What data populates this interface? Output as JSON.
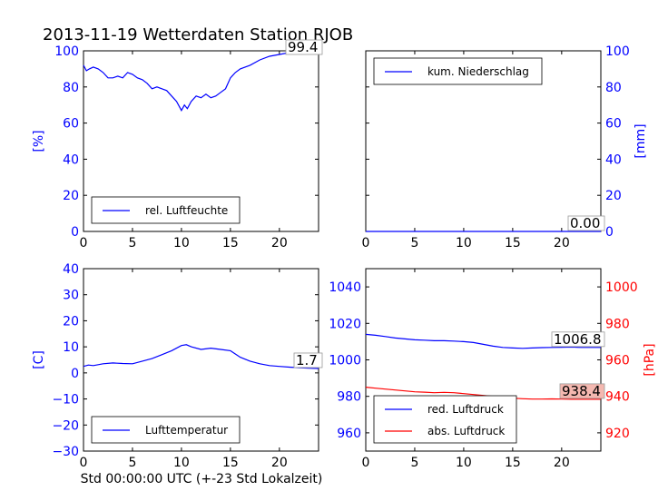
{
  "figure": {
    "title": "2013-11-19 Wetterdaten Station RJOB",
    "xlabel": "Std 00:00:00 UTC (+-23 Std Lokalzeit)"
  },
  "colors": {
    "blue": "#0000ff",
    "red": "#ff0000",
    "black": "#000000",
    "label_bg": "#ffffff",
    "label_bg_red": "#f4b8b0"
  },
  "chart_data": [
    {
      "type": "line",
      "panel": "top-left",
      "xlim": [
        0,
        24
      ],
      "xticks": [
        "0",
        "5",
        "10",
        "15",
        "20"
      ],
      "ylabel": "[%]",
      "ylim": [
        0,
        100
      ],
      "yticks": [
        "0",
        "20",
        "40",
        "60",
        "80",
        "100"
      ],
      "ytick_color": "blue",
      "legend": "bottom-left",
      "last_value_label": "99.4",
      "series": [
        {
          "name": "rel. Luftfeuchte",
          "color": "blue",
          "x": [
            0,
            0.3,
            0.6,
            1,
            1.5,
            2,
            2.5,
            3,
            3.5,
            4,
            4.5,
            5,
            5.5,
            6,
            6.5,
            7,
            7.5,
            8,
            8.5,
            9,
            9.5,
            10,
            10.3,
            10.6,
            11,
            11.5,
            12,
            12.5,
            13,
            13.5,
            14,
            14.5,
            15,
            15.5,
            16,
            17,
            18,
            19,
            20,
            21,
            22,
            23,
            24
          ],
          "y": [
            92,
            89,
            90,
            91,
            90,
            88,
            85,
            85,
            86,
            85,
            88,
            87,
            85,
            84,
            82,
            79,
            80,
            79,
            78,
            75,
            72,
            67,
            70,
            68,
            72,
            75,
            74,
            76,
            74,
            75,
            77,
            79,
            85,
            88,
            90,
            92,
            95,
            97,
            98,
            99,
            99.2,
            99.4,
            99.4
          ]
        }
      ]
    },
    {
      "type": "line",
      "panel": "top-right",
      "xlim": [
        0,
        24
      ],
      "xticks": [
        "0",
        "5",
        "10",
        "15",
        "20"
      ],
      "ylabel": "[mm]",
      "ylim": [
        0,
        100
      ],
      "yticks": [
        "0",
        "20",
        "40",
        "60",
        "80",
        "100"
      ],
      "ytick_color": "blue",
      "legend": "top-left",
      "last_value_label": "0.00",
      "series": [
        {
          "name": "kum. Niederschlag",
          "color": "blue",
          "x": [
            0,
            24
          ],
          "y": [
            0,
            0
          ]
        }
      ]
    },
    {
      "type": "line",
      "panel": "bottom-left",
      "xlim": [
        0,
        24
      ],
      "xticks": [
        "0",
        "5",
        "10",
        "15",
        "20"
      ],
      "ylabel": "[C]",
      "ylim": [
        -30,
        40
      ],
      "yticks": [
        "−30",
        "−20",
        "−10",
        "0",
        "10",
        "20",
        "30",
        "40"
      ],
      "ytick_color": "blue",
      "legend": "bottom-left",
      "last_value_label": "1.7",
      "series": [
        {
          "name": "Lufttemperatur",
          "color": "blue",
          "x": [
            0,
            0.5,
            1,
            2,
            3,
            4,
            5,
            6,
            7,
            8,
            9,
            10,
            10.5,
            11,
            12,
            13,
            14,
            15,
            16,
            17,
            18,
            19,
            20,
            21,
            22,
            23,
            24
          ],
          "y": [
            2.5,
            3,
            2.8,
            3.5,
            3.8,
            3.6,
            3.5,
            4.5,
            5.5,
            7,
            8.5,
            10.5,
            10.8,
            10,
            9,
            9.5,
            9,
            8.5,
            6,
            4.5,
            3.5,
            2.8,
            2.5,
            2.2,
            2,
            1.8,
            1.7
          ]
        }
      ]
    },
    {
      "type": "line",
      "panel": "bottom-right",
      "xlim": [
        0,
        24
      ],
      "xticks": [
        "0",
        "5",
        "10",
        "15",
        "20"
      ],
      "ylabel": "[hPa]",
      "ylim_left": [
        950,
        1050
      ],
      "yticks_left": [
        "960",
        "980",
        "1000",
        "1020",
        "1040"
      ],
      "ytick_color_left": "blue",
      "ylim_right": [
        910,
        1010
      ],
      "yticks_right": [
        "920",
        "940",
        "960",
        "980",
        "1000"
      ],
      "ytick_color_right": "red",
      "legend": "bottom-left",
      "last_value_labels": [
        "1006.8",
        "938.4"
      ],
      "series": [
        {
          "name": "red. Luftdruck",
          "color": "blue",
          "axis": "left",
          "x": [
            0,
            1,
            2,
            3,
            4,
            5,
            6,
            7,
            8,
            9,
            10,
            11,
            12,
            13,
            14,
            15,
            16,
            17,
            18,
            19,
            20,
            21,
            22,
            23,
            24
          ],
          "y": [
            1014,
            1013.5,
            1012.8,
            1012,
            1011.5,
            1011,
            1010.8,
            1010.5,
            1010.5,
            1010.3,
            1010,
            1009.5,
            1008.5,
            1007.5,
            1006.8,
            1006.5,
            1006.3,
            1006.5,
            1006.7,
            1006.8,
            1006.9,
            1007,
            1006.8,
            1006.8,
            1006.8
          ]
        },
        {
          "name": "abs. Luftdruck",
          "color": "red",
          "axis": "right",
          "x": [
            0,
            1,
            2,
            3,
            4,
            5,
            6,
            7,
            8,
            9,
            10,
            11,
            12,
            13,
            14,
            15,
            16,
            17,
            18,
            19,
            20,
            21,
            22,
            23,
            24
          ],
          "y": [
            945,
            944.5,
            944,
            943.5,
            943,
            942.5,
            942.3,
            942,
            942.2,
            942,
            941.5,
            941,
            940.5,
            940,
            939.5,
            939,
            938.7,
            938.5,
            938.5,
            938.6,
            938.5,
            938.4,
            938.4,
            938.4,
            938.4
          ]
        }
      ]
    }
  ]
}
